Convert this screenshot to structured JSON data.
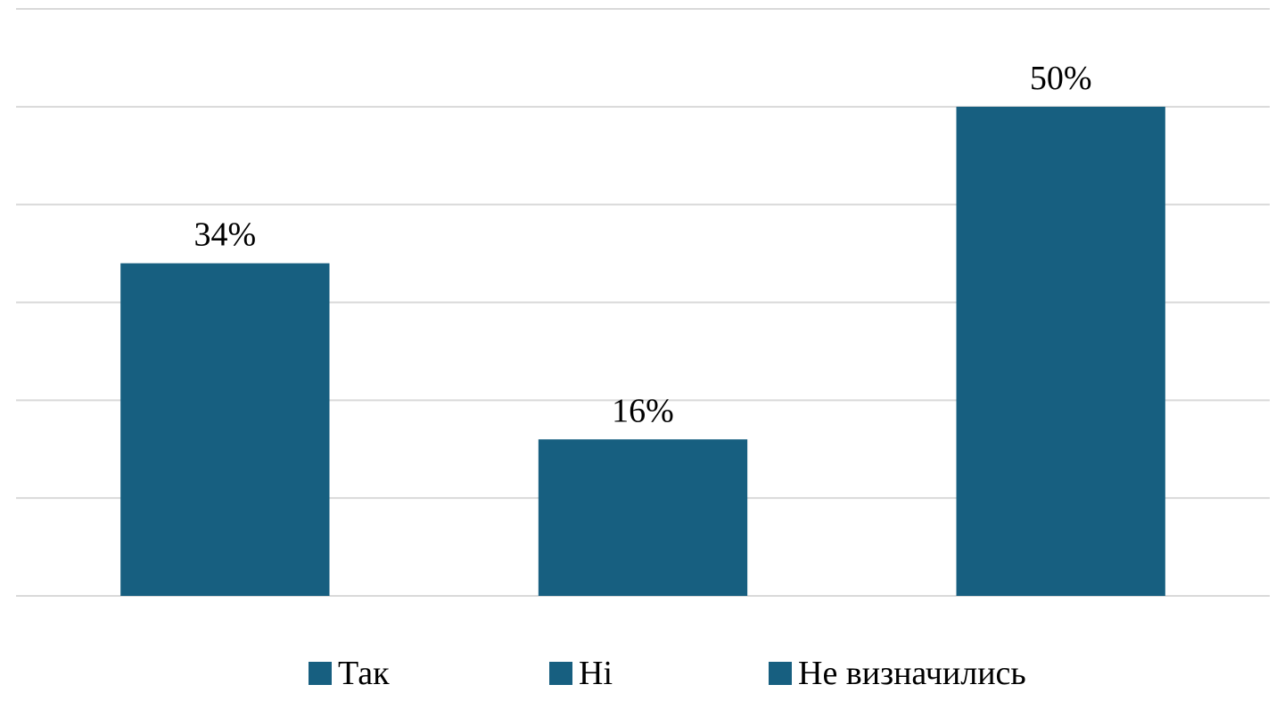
{
  "colors": {
    "bar": "#175f80",
    "grid": "#d9d9d9",
    "text": "#000000",
    "background": "#ffffff"
  },
  "chart_data": {
    "type": "bar",
    "title": "",
    "xlabel": "",
    "ylabel": "",
    "categories": [
      "Так",
      "Ні",
      "Не визначились"
    ],
    "series": [
      {
        "name": "",
        "values": [
          34,
          16,
          50
        ],
        "labels": [
          "34%",
          "16%",
          "50%"
        ]
      }
    ],
    "ylim": [
      0,
      60
    ],
    "grid_step": 10,
    "grid": true,
    "legend": {
      "placement": "bottom",
      "entries": [
        "Так",
        "Ні",
        "Не визначились"
      ]
    },
    "x_axis_tick_labels": false,
    "y_axis_tick_labels": false
  }
}
